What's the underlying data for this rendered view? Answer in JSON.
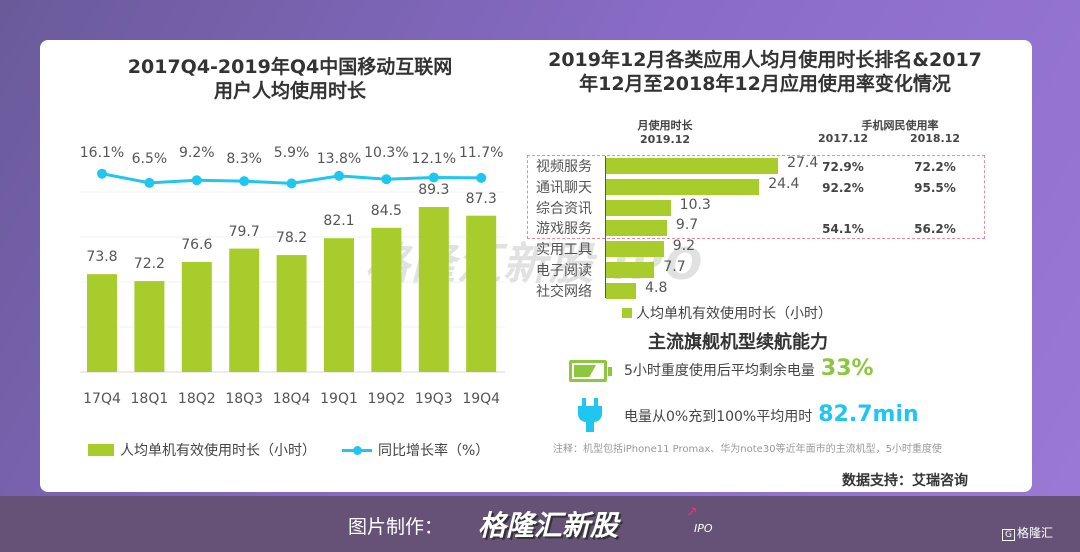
{
  "left": {
    "title_line1": "2017Q4-2019年Q4中国移动互联网",
    "title_line2": "用户人均使用时长",
    "legend_bar": "人均单机有效使用时长（小时）",
    "legend_line": "同比增长率（%）"
  },
  "right": {
    "title_line1": "2019年12月各类应用人均月使用时长排名&2017",
    "title_line2": "年12月至2018年12月应用使用率变化情况",
    "hdr_usage_1": "月使用时长",
    "hdr_usage_2": "2019.12",
    "hdr_rate": "手机网民使用率",
    "hdr_2017": "2017.12",
    "hdr_2018": "2018.12",
    "legend": "人均单机有效使用时长（小时）"
  },
  "battery": {
    "title": "主流旗舰机型续航能力",
    "line1": "5小时重度使用后平均剩余电量",
    "value1": "33%",
    "line2": "电量从0%充到100%平均用时",
    "value2": "82.7min",
    "note": "注释：机型包括iPhone11 Promax、华为note30等近年面市的主流机型，5小时重度使"
  },
  "source": "数据支持：艾瑞咨询",
  "footer": {
    "label": "图片制作：",
    "brand": "格隆汇新股",
    "ipo": "IPO",
    "corner_logo": "格隆汇"
  },
  "watermark": "格隆汇新股 IPO",
  "colors": {
    "bar": "#a8cc2c",
    "line": "#1ec6f0",
    "battery": "#8dc63f",
    "plug": "#1ec6f0"
  },
  "chart_data": [
    {
      "type": "bar+line",
      "categories": [
        "17Q4",
        "18Q1",
        "18Q2",
        "18Q3",
        "18Q4",
        "19Q1",
        "19Q2",
        "19Q3",
        "19Q4"
      ],
      "series": [
        {
          "name": "人均单机有效使用时长（小时）",
          "type": "bar",
          "values": [
            73.8,
            72.2,
            76.6,
            79.7,
            78.2,
            82.1,
            84.5,
            89.3,
            87.3
          ]
        },
        {
          "name": "同比增长率（%）",
          "type": "line",
          "values": [
            16.1,
            6.5,
            9.2,
            8.3,
            5.9,
            13.8,
            10.3,
            12.1,
            11.7
          ]
        }
      ],
      "value_labels": [
        "73.8",
        "72.2",
        "76.6",
        "79.7",
        "78.2",
        "82.1",
        "84.5",
        "89.3",
        "87.3"
      ],
      "line_labels": [
        "16.1%",
        "6.5%",
        "9.2%",
        "8.3%",
        "5.9%",
        "13.8%",
        "10.3%",
        "12.1%",
        "11.7%"
      ],
      "grid": true,
      "legend": "bottom"
    },
    {
      "type": "bar",
      "orientation": "horizontal",
      "categories": [
        "视频服务",
        "通讯聊天",
        "综合资讯",
        "游戏服务",
        "实用工具",
        "电子阅读",
        "社交网络"
      ],
      "values": [
        27.4,
        24.4,
        10.3,
        9.7,
        9.2,
        7.7,
        4.8
      ],
      "value_labels": [
        "27.4",
        "24.4",
        "10.3",
        "9.7",
        "9.2",
        "7.7",
        "4.8"
      ],
      "rate_2017": [
        "72.9%",
        "92.2%",
        "",
        "54.1%",
        "",
        "",
        ""
      ],
      "rate_2018": [
        "72.2%",
        "95.5%",
        "",
        "56.2%",
        "",
        "",
        ""
      ],
      "highlighted_rows": 4,
      "legend": "bottom"
    }
  ]
}
